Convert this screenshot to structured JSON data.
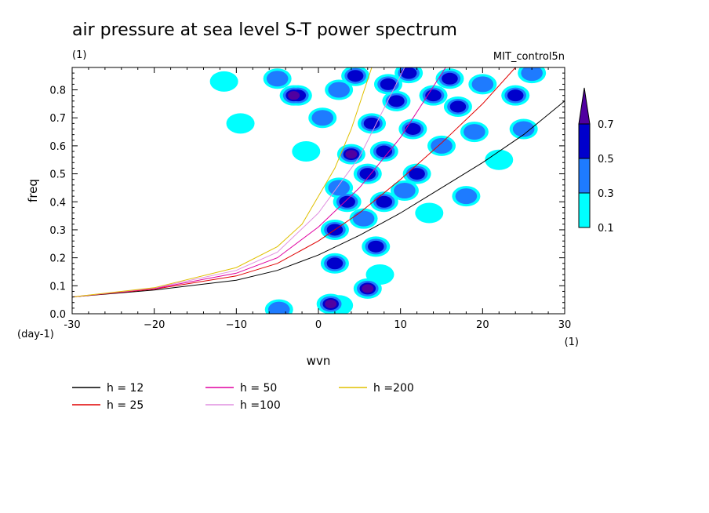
{
  "chart_data": {
    "type": "heatmap",
    "title": "air pressure at sea level S-T power spectrum",
    "subtitle": "(1)",
    "dataset_label": "MIT_control5n",
    "xlabel": "wvn",
    "ylabel": "freq",
    "x_units": "(1)",
    "y_units": "(day-1)",
    "xlim": [
      -30,
      30
    ],
    "ylim": [
      0,
      0.88
    ],
    "x_ticks": [
      -30,
      -20,
      -10,
      0,
      10,
      20,
      30
    ],
    "x_tick_labels": [
      "-30",
      "−20",
      "−10",
      "0",
      "10",
      "20",
      "30"
    ],
    "y_ticks": [
      0.0,
      0.1,
      0.2,
      0.3,
      0.4,
      0.5,
      0.6,
      0.7,
      0.8
    ],
    "y_tick_labels": [
      "0.0",
      "0.1",
      "0.2",
      "0.3",
      "0.4",
      "0.5",
      "0.6",
      "0.7",
      "0.8"
    ],
    "colorbar": {
      "levels": [
        "0.1",
        "0.3",
        "0.5",
        "0.7"
      ],
      "colors": [
        "#00ffff",
        "#1e7bff",
        "#0000cc",
        "#5000a0"
      ]
    },
    "colors": {
      "level_0_1": "#00ffff",
      "level_0_3": "#1e7bff",
      "level_0_5": "#0000cc",
      "level_0_7": "#5000a0"
    },
    "blobs": [
      {
        "x": 1.5,
        "y": 0.035,
        "level": 0.7
      },
      {
        "x": 2.5,
        "y": 0.03,
        "level": 0.1
      },
      {
        "x": -4.8,
        "y": 0.015,
        "level": 0.3
      },
      {
        "x": 6.0,
        "y": 0.09,
        "level": 0.7
      },
      {
        "x": 7.5,
        "y": 0.14,
        "level": 0.1
      },
      {
        "x": 2.0,
        "y": 0.18,
        "level": 0.5
      },
      {
        "x": 7.0,
        "y": 0.24,
        "level": 0.5
      },
      {
        "x": 2.0,
        "y": 0.3,
        "level": 0.5
      },
      {
        "x": 5.5,
        "y": 0.34,
        "level": 0.3
      },
      {
        "x": 3.5,
        "y": 0.4,
        "level": 0.5
      },
      {
        "x": 8.0,
        "y": 0.4,
        "level": 0.5
      },
      {
        "x": 2.5,
        "y": 0.45,
        "level": 0.3
      },
      {
        "x": 10.5,
        "y": 0.44,
        "level": 0.3
      },
      {
        "x": 6.0,
        "y": 0.5,
        "level": 0.5
      },
      {
        "x": 12.0,
        "y": 0.5,
        "level": 0.5
      },
      {
        "x": 4.0,
        "y": 0.57,
        "level": 0.7
      },
      {
        "x": 8.0,
        "y": 0.58,
        "level": 0.5
      },
      {
        "x": 15.0,
        "y": 0.6,
        "level": 0.3
      },
      {
        "x": 6.5,
        "y": 0.68,
        "level": 0.5
      },
      {
        "x": 11.5,
        "y": 0.66,
        "level": 0.5
      },
      {
        "x": 19.0,
        "y": 0.65,
        "level": 0.3
      },
      {
        "x": 2.5,
        "y": 0.8,
        "level": 0.3
      },
      {
        "x": 9.5,
        "y": 0.76,
        "level": 0.5
      },
      {
        "x": 14.0,
        "y": 0.78,
        "level": 0.5
      },
      {
        "x": 20.0,
        "y": 0.82,
        "level": 0.3
      },
      {
        "x": -3.0,
        "y": 0.78,
        "level": 0.7
      },
      {
        "x": -2.5,
        "y": 0.78,
        "level": 0.5
      },
      {
        "x": -5.0,
        "y": 0.84,
        "level": 0.3
      },
      {
        "x": 4.5,
        "y": 0.85,
        "level": 0.5
      },
      {
        "x": 8.5,
        "y": 0.82,
        "level": 0.5
      },
      {
        "x": 17.0,
        "y": 0.74,
        "level": 0.5
      },
      {
        "x": 24.0,
        "y": 0.78,
        "level": 0.5
      },
      {
        "x": 26.0,
        "y": 0.86,
        "level": 0.3
      },
      {
        "x": 22.0,
        "y": 0.55,
        "level": 0.1
      },
      {
        "x": 18.0,
        "y": 0.42,
        "level": 0.3
      },
      {
        "x": 13.5,
        "y": 0.36,
        "level": 0.1
      },
      {
        "x": 25.0,
        "y": 0.66,
        "level": 0.3
      },
      {
        "x": -1.5,
        "y": 0.58,
        "level": 0.1
      },
      {
        "x": -9.5,
        "y": 0.68,
        "level": 0.1
      },
      {
        "x": -11.5,
        "y": 0.83,
        "level": 0.1
      },
      {
        "x": 0.5,
        "y": 0.7,
        "level": 0.3
      },
      {
        "x": 11.0,
        "y": 0.86,
        "level": 0.5
      },
      {
        "x": 16.0,
        "y": 0.84,
        "level": 0.5
      }
    ],
    "series": [
      {
        "name": "h = 12",
        "h": 12,
        "color": "#000000",
        "x": [
          -30,
          -20,
          -10,
          -5,
          0,
          5,
          10,
          15,
          20,
          25,
          30
        ],
        "y": [
          0.06,
          0.085,
          0.12,
          0.155,
          0.21,
          0.28,
          0.36,
          0.45,
          0.54,
          0.64,
          0.76
        ]
      },
      {
        "name": "h = 25",
        "h": 25,
        "color": "#e00000",
        "x": [
          -30,
          -20,
          -10,
          -5,
          0,
          5,
          10,
          15,
          20,
          24
        ],
        "y": [
          0.06,
          0.088,
          0.135,
          0.18,
          0.26,
          0.36,
          0.48,
          0.61,
          0.75,
          0.88
        ]
      },
      {
        "name": "h = 50",
        "h": 50,
        "color": "#e000a0",
        "x": [
          -30,
          -20,
          -10,
          -5,
          0,
          5,
          10,
          15.5
        ],
        "y": [
          0.06,
          0.09,
          0.145,
          0.2,
          0.31,
          0.45,
          0.63,
          0.88
        ]
      },
      {
        "name": "h =100",
        "h": 100,
        "color": "#e090e0",
        "x": [
          -30,
          -20,
          -10,
          -5,
          0,
          5,
          10.5
        ],
        "y": [
          0.06,
          0.092,
          0.155,
          0.22,
          0.36,
          0.56,
          0.88
        ]
      },
      {
        "name": "h =200",
        "h": 200,
        "color": "#e0c000",
        "x": [
          -30,
          -20,
          -10,
          -5,
          -2,
          0,
          2,
          4,
          6.5
        ],
        "y": [
          0.06,
          0.093,
          0.165,
          0.24,
          0.32,
          0.42,
          0.52,
          0.66,
          0.88
        ]
      }
    ]
  }
}
